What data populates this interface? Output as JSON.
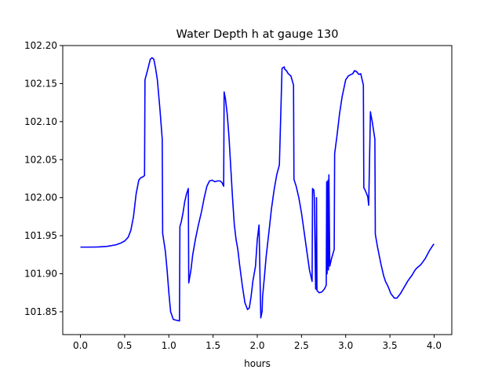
{
  "chart_data": {
    "type": "line",
    "title": "Water Depth h at gauge 130",
    "xlabel": "hours",
    "ylabel": "",
    "xlim": [
      -0.2,
      4.2
    ],
    "ylim": [
      101.82,
      102.2
    ],
    "xticks": [
      0.0,
      0.5,
      1.0,
      1.5,
      2.0,
      2.5,
      3.0,
      3.5,
      4.0
    ],
    "xtick_labels": [
      "0.0",
      "0.5",
      "1.0",
      "1.5",
      "2.0",
      "2.5",
      "3.0",
      "3.5",
      "4.0"
    ],
    "yticks": [
      101.85,
      101.9,
      101.95,
      102.0,
      102.05,
      102.1,
      102.15,
      102.2
    ],
    "ytick_labels": [
      "101.85",
      "101.90",
      "101.95",
      "102.00",
      "102.05",
      "102.10",
      "102.15",
      "102.20"
    ],
    "grid": false,
    "series": [
      {
        "color": "#0000ff",
        "x": [
          0.0,
          0.1,
          0.2,
          0.3,
          0.4,
          0.45,
          0.5,
          0.54,
          0.57,
          0.6,
          0.63,
          0.66,
          0.68,
          0.7,
          0.725,
          0.73,
          0.76,
          0.79,
          0.81,
          0.83,
          0.85,
          0.87,
          0.9,
          0.925,
          0.93,
          0.96,
          0.98,
          1.0,
          1.02,
          1.05,
          1.08,
          1.12,
          1.125,
          1.14,
          1.16,
          1.18,
          1.2,
          1.22,
          1.225,
          1.25,
          1.27,
          1.3,
          1.33,
          1.37,
          1.4,
          1.43,
          1.46,
          1.49,
          1.52,
          1.55,
          1.58,
          1.6,
          1.62,
          1.625,
          1.64,
          1.66,
          1.68,
          1.7,
          1.72,
          1.74,
          1.76,
          1.78,
          1.8,
          1.83,
          1.86,
          1.89,
          1.91,
          1.93,
          1.95,
          1.98,
          2.0,
          2.02,
          2.04,
          2.055,
          2.06,
          2.08,
          2.1,
          2.13,
          2.16,
          2.19,
          2.22,
          2.25,
          2.28,
          2.305,
          2.31,
          2.33,
          2.35,
          2.38,
          2.41,
          2.415,
          2.44,
          2.47,
          2.5,
          2.53,
          2.56,
          2.59,
          2.62,
          2.625,
          2.64,
          2.645,
          2.66,
          2.665,
          2.67,
          2.675,
          2.7,
          2.73,
          2.76,
          2.78,
          2.785,
          2.79,
          2.8,
          2.805,
          2.81,
          2.82,
          2.84,
          2.87,
          2.875,
          2.9,
          2.93,
          2.96,
          3.0,
          3.03,
          3.06,
          3.08,
          3.1,
          3.12,
          3.15,
          3.17,
          3.2,
          3.205,
          3.22,
          3.25,
          3.26,
          3.28,
          3.285,
          3.3,
          3.33,
          3.335,
          3.36,
          3.4,
          3.43,
          3.45,
          3.48,
          3.51,
          3.55,
          3.58,
          3.62,
          3.66,
          3.7,
          3.73,
          3.75,
          3.78,
          3.8,
          3.85,
          3.9,
          3.95,
          3.99,
          4.0
        ],
        "y": [
          101.935,
          101.935,
          101.9352,
          101.936,
          101.938,
          101.94,
          101.943,
          101.948,
          101.957,
          101.975,
          102.005,
          102.023,
          102.026,
          102.027,
          102.029,
          102.155,
          102.168,
          102.182,
          102.184,
          102.182,
          102.17,
          102.155,
          102.115,
          102.077,
          101.953,
          101.93,
          101.905,
          101.875,
          101.85,
          101.84,
          101.839,
          101.838,
          101.962,
          101.968,
          101.98,
          101.995,
          102.005,
          102.012,
          101.888,
          101.905,
          101.925,
          101.945,
          101.962,
          101.982,
          102.0,
          102.015,
          102.022,
          102.023,
          102.021,
          102.022,
          102.022,
          102.02,
          102.015,
          102.139,
          102.13,
          102.11,
          102.08,
          102.04,
          102.0,
          101.965,
          101.945,
          101.932,
          101.912,
          101.885,
          101.862,
          101.853,
          101.855,
          101.87,
          101.89,
          101.91,
          101.945,
          101.964,
          101.842,
          101.851,
          101.87,
          101.895,
          101.922,
          101.953,
          101.985,
          102.01,
          102.03,
          102.043,
          102.17,
          102.172,
          102.169,
          102.167,
          102.163,
          102.16,
          102.148,
          102.024,
          102.015,
          102.0,
          101.98,
          101.955,
          101.93,
          101.905,
          101.89,
          102.012,
          102.01,
          102.0,
          101.88,
          101.88,
          102.0,
          101.878,
          101.875,
          101.876,
          101.88,
          101.885,
          102.021,
          101.9,
          102.023,
          101.905,
          102.03,
          101.91,
          101.92,
          101.932,
          102.058,
          102.08,
          102.11,
          102.133,
          102.155,
          102.16,
          102.162,
          102.163,
          102.167,
          102.166,
          102.162,
          102.163,
          102.148,
          102.013,
          102.01,
          102.001,
          101.99,
          102.113,
          102.109,
          102.1,
          102.077,
          101.952,
          101.935,
          101.912,
          101.897,
          101.89,
          101.883,
          101.874,
          101.868,
          101.868,
          101.874,
          101.882,
          101.89,
          101.895,
          101.898,
          101.904,
          101.907,
          101.912,
          101.92,
          101.931,
          101.938,
          101.939
        ]
      }
    ]
  }
}
